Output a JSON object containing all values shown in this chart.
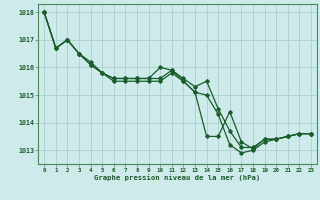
{
  "title": "Graphe pression niveau de la mer (hPa)",
  "background_color": "#ceeaea",
  "grid_color": "#aed4d4",
  "line_color": "#1a5c2a",
  "spine_color": "#4a8a5a",
  "xlim": [
    -0.5,
    23.5
  ],
  "ylim": [
    1012.5,
    1018.3
  ],
  "yticks": [
    1013,
    1014,
    1015,
    1016,
    1017,
    1018
  ],
  "xticks": [
    0,
    1,
    2,
    3,
    4,
    5,
    6,
    7,
    8,
    9,
    10,
    11,
    12,
    13,
    14,
    15,
    16,
    17,
    18,
    19,
    20,
    21,
    22,
    23
  ],
  "series": [
    [
      1018.0,
      1016.7,
      1017.0,
      1016.5,
      1016.1,
      1015.8,
      1015.5,
      1015.5,
      1015.5,
      1015.5,
      1015.5,
      1015.8,
      1015.5,
      1015.1,
      1015.0,
      1014.3,
      1013.2,
      1012.9,
      1013.0,
      1013.3,
      1013.4,
      1013.5,
      1013.6,
      1013.6
    ],
    [
      1018.0,
      1016.7,
      1017.0,
      1016.5,
      1016.1,
      1015.8,
      1015.6,
      1015.6,
      1015.6,
      1015.6,
      1016.0,
      1015.9,
      1015.6,
      1015.3,
      1015.5,
      1014.5,
      1013.7,
      1013.1,
      1013.1,
      1013.4,
      1013.4,
      1013.5,
      1013.6,
      1013.6
    ],
    [
      1018.0,
      1016.7,
      1017.0,
      1016.5,
      1016.2,
      1015.8,
      1015.6,
      1015.6,
      1015.6,
      1015.6,
      1015.6,
      1015.9,
      1015.5,
      1015.1,
      1013.5,
      1013.5,
      1014.4,
      1013.3,
      1013.05,
      1013.4,
      1013.4,
      1013.5,
      1013.6,
      1013.6
    ]
  ]
}
